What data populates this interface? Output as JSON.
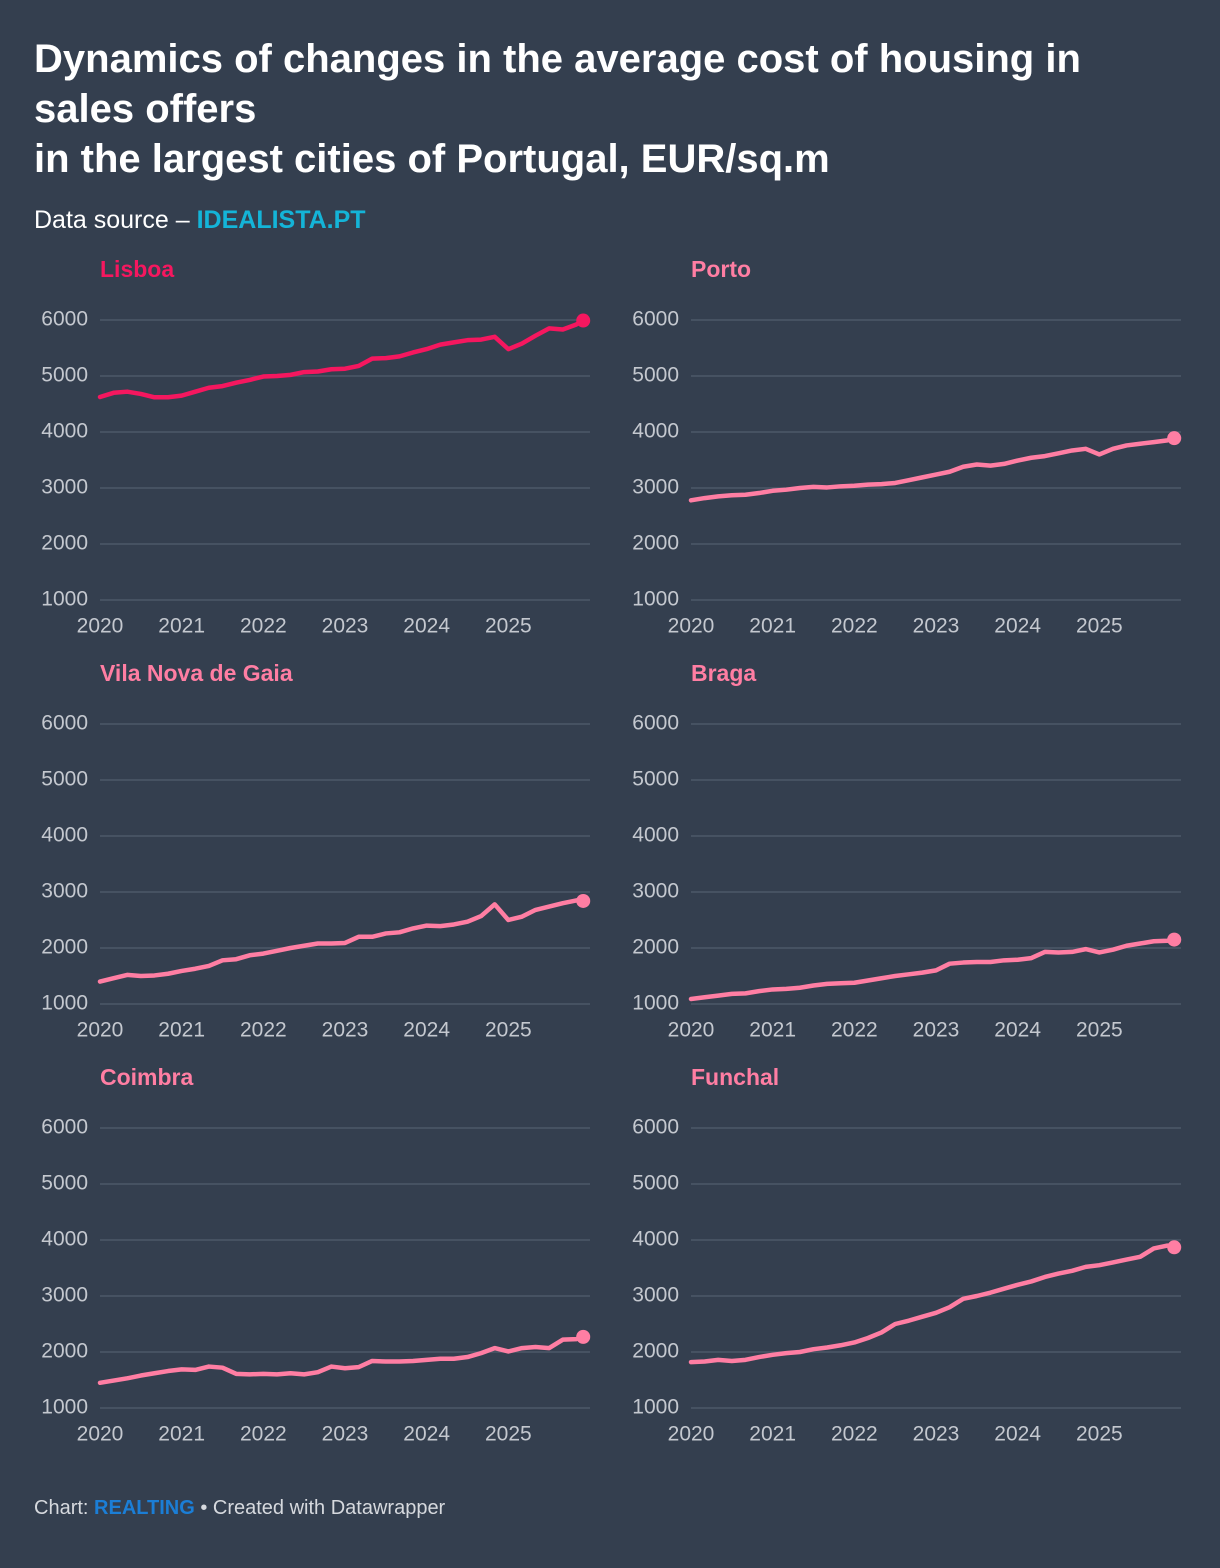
{
  "header": {
    "title": [
      "Dynamics of changes in the average cost of housing in sales offers",
      "in the largest cities of Portugal, EUR/sq.m"
    ],
    "source_label": "Data source –",
    "source": "IDEALISTA.PT"
  },
  "chart_data": [
    {
      "type": "line",
      "title": "Lisboa",
      "color": "#f5175f",
      "x": [
        2020,
        2020.167,
        2020.333,
        2020.5,
        2020.667,
        2020.833,
        2021,
        2021.167,
        2021.333,
        2021.5,
        2021.667,
        2021.833,
        2022,
        2022.167,
        2022.333,
        2022.5,
        2022.667,
        2022.833,
        2023,
        2023.167,
        2023.333,
        2023.5,
        2023.667,
        2023.833,
        2024,
        2024.167,
        2024.333,
        2024.5,
        2024.667,
        2024.833,
        2025,
        2025.167,
        2025.333,
        2025.5,
        2025.667,
        2025.833,
        2025.917
      ],
      "values": [
        4625,
        4700,
        4720,
        4680,
        4620,
        4620,
        4650,
        4720,
        4790,
        4820,
        4880,
        4930,
        4990,
        5000,
        5020,
        5070,
        5080,
        5120,
        5130,
        5180,
        5310,
        5320,
        5350,
        5420,
        5480,
        5560,
        5600,
        5640,
        5650,
        5700,
        5480,
        5580,
        5720,
        5850,
        5830,
        5920,
        5990
      ],
      "xlim": [
        2020,
        2026
      ],
      "xticks": [
        2020,
        2021,
        2022,
        2023,
        2024,
        2025
      ],
      "ylim": [
        1000,
        6000
      ],
      "yticks": [
        1000,
        2000,
        3000,
        4000,
        5000,
        6000
      ],
      "grid": true
    },
    {
      "type": "line",
      "title": "Porto",
      "color": "#ff7ea3",
      "x": [
        2020,
        2020.167,
        2020.333,
        2020.5,
        2020.667,
        2020.833,
        2021,
        2021.167,
        2021.333,
        2021.5,
        2021.667,
        2021.833,
        2022,
        2022.167,
        2022.333,
        2022.5,
        2022.667,
        2022.833,
        2023,
        2023.167,
        2023.333,
        2023.5,
        2023.667,
        2023.833,
        2024,
        2024.167,
        2024.333,
        2024.5,
        2024.667,
        2024.833,
        2025,
        2025.167,
        2025.333,
        2025.5,
        2025.667,
        2025.833,
        2025.917
      ],
      "values": [
        2780,
        2820,
        2850,
        2870,
        2880,
        2910,
        2950,
        2970,
        3000,
        3020,
        3010,
        3030,
        3040,
        3060,
        3070,
        3090,
        3140,
        3190,
        3240,
        3290,
        3380,
        3420,
        3400,
        3430,
        3490,
        3540,
        3570,
        3620,
        3670,
        3700,
        3600,
        3700,
        3760,
        3790,
        3820,
        3850,
        3890
      ],
      "xlim": [
        2020,
        2026
      ],
      "xticks": [
        2020,
        2021,
        2022,
        2023,
        2024,
        2025
      ],
      "ylim": [
        1000,
        6000
      ],
      "yticks": [
        1000,
        2000,
        3000,
        4000,
        5000,
        6000
      ],
      "grid": true
    },
    {
      "type": "line",
      "title": "Vila Nova de Gaia",
      "color": "#ff7ea3",
      "x": [
        2020,
        2020.167,
        2020.333,
        2020.5,
        2020.667,
        2020.833,
        2021,
        2021.167,
        2021.333,
        2021.5,
        2021.667,
        2021.833,
        2022,
        2022.167,
        2022.333,
        2022.5,
        2022.667,
        2022.833,
        2023,
        2023.167,
        2023.333,
        2023.5,
        2023.667,
        2023.833,
        2024,
        2024.167,
        2024.333,
        2024.5,
        2024.667,
        2024.833,
        2025,
        2025.167,
        2025.333,
        2025.5,
        2025.667,
        2025.833,
        2025.917
      ],
      "values": [
        1400,
        1460,
        1520,
        1500,
        1510,
        1540,
        1590,
        1630,
        1680,
        1780,
        1800,
        1870,
        1900,
        1950,
        2000,
        2040,
        2080,
        2080,
        2090,
        2200,
        2200,
        2260,
        2280,
        2350,
        2400,
        2390,
        2420,
        2470,
        2570,
        2780,
        2500,
        2560,
        2680,
        2740,
        2800,
        2850,
        2840
      ],
      "xlim": [
        2020,
        2026
      ],
      "xticks": [
        2020,
        2021,
        2022,
        2023,
        2024,
        2025
      ],
      "ylim": [
        1000,
        6000
      ],
      "yticks": [
        1000,
        2000,
        3000,
        4000,
        5000,
        6000
      ],
      "grid": true
    },
    {
      "type": "line",
      "title": "Braga",
      "color": "#ff7ea3",
      "x": [
        2020,
        2020.167,
        2020.333,
        2020.5,
        2020.667,
        2020.833,
        2021,
        2021.167,
        2021.333,
        2021.5,
        2021.667,
        2021.833,
        2022,
        2022.167,
        2022.333,
        2022.5,
        2022.667,
        2022.833,
        2023,
        2023.167,
        2023.333,
        2023.5,
        2023.667,
        2023.833,
        2024,
        2024.167,
        2024.333,
        2024.5,
        2024.667,
        2024.833,
        2025,
        2025.167,
        2025.333,
        2025.5,
        2025.667,
        2025.833,
        2025.917
      ],
      "values": [
        1090,
        1120,
        1150,
        1180,
        1190,
        1230,
        1260,
        1270,
        1290,
        1330,
        1360,
        1370,
        1380,
        1420,
        1460,
        1500,
        1530,
        1560,
        1600,
        1720,
        1740,
        1750,
        1750,
        1780,
        1790,
        1820,
        1930,
        1920,
        1930,
        1980,
        1920,
        1970,
        2040,
        2080,
        2120,
        2130,
        2150
      ],
      "xlim": [
        2020,
        2026
      ],
      "xticks": [
        2020,
        2021,
        2022,
        2023,
        2024,
        2025
      ],
      "ylim": [
        1000,
        6000
      ],
      "yticks": [
        1000,
        2000,
        3000,
        4000,
        5000,
        6000
      ],
      "grid": true
    },
    {
      "type": "line",
      "title": "Coimbra",
      "color": "#ff7ea3",
      "x": [
        2020,
        2020.167,
        2020.333,
        2020.5,
        2020.667,
        2020.833,
        2021,
        2021.167,
        2021.333,
        2021.5,
        2021.667,
        2021.833,
        2022,
        2022.167,
        2022.333,
        2022.5,
        2022.667,
        2022.833,
        2023,
        2023.167,
        2023.333,
        2023.5,
        2023.667,
        2023.833,
        2024,
        2024.167,
        2024.333,
        2024.5,
        2024.667,
        2024.833,
        2025,
        2025.167,
        2025.333,
        2025.5,
        2025.667,
        2025.833,
        2025.917
      ],
      "values": [
        1450,
        1490,
        1530,
        1580,
        1620,
        1660,
        1690,
        1680,
        1740,
        1720,
        1610,
        1600,
        1610,
        1600,
        1620,
        1600,
        1640,
        1740,
        1710,
        1730,
        1840,
        1830,
        1830,
        1840,
        1860,
        1880,
        1880,
        1910,
        1980,
        2070,
        2010,
        2070,
        2090,
        2070,
        2220,
        2230,
        2270
      ],
      "xlim": [
        2020,
        2026
      ],
      "xticks": [
        2020,
        2021,
        2022,
        2023,
        2024,
        2025
      ],
      "ylim": [
        1000,
        6000
      ],
      "yticks": [
        1000,
        2000,
        3000,
        4000,
        5000,
        6000
      ],
      "grid": true
    },
    {
      "type": "line",
      "title": "Funchal",
      "color": "#ff7ea3",
      "x": [
        2020,
        2020.167,
        2020.333,
        2020.5,
        2020.667,
        2020.833,
        2021,
        2021.167,
        2021.333,
        2021.5,
        2021.667,
        2021.833,
        2022,
        2022.167,
        2022.333,
        2022.5,
        2022.667,
        2022.833,
        2023,
        2023.167,
        2023.333,
        2023.5,
        2023.667,
        2023.833,
        2024,
        2024.167,
        2024.333,
        2024.5,
        2024.667,
        2024.833,
        2025,
        2025.167,
        2025.333,
        2025.5,
        2025.667,
        2025.833,
        2025.917
      ],
      "values": [
        1820,
        1830,
        1860,
        1840,
        1860,
        1910,
        1950,
        1980,
        2000,
        2050,
        2080,
        2120,
        2170,
        2250,
        2350,
        2500,
        2560,
        2630,
        2700,
        2800,
        2950,
        3000,
        3060,
        3130,
        3200,
        3260,
        3340,
        3400,
        3450,
        3520,
        3550,
        3600,
        3650,
        3700,
        3850,
        3900,
        3870
      ],
      "xlim": [
        2020,
        2026
      ],
      "xticks": [
        2020,
        2021,
        2022,
        2023,
        2024,
        2025
      ],
      "ylim": [
        1000,
        6000
      ],
      "yticks": [
        1000,
        2000,
        3000,
        4000,
        5000,
        6000
      ],
      "grid": true
    }
  ],
  "footer": {
    "label": "Chart:",
    "author": "REALTING",
    "credit": "• Created with Datawrapper"
  }
}
